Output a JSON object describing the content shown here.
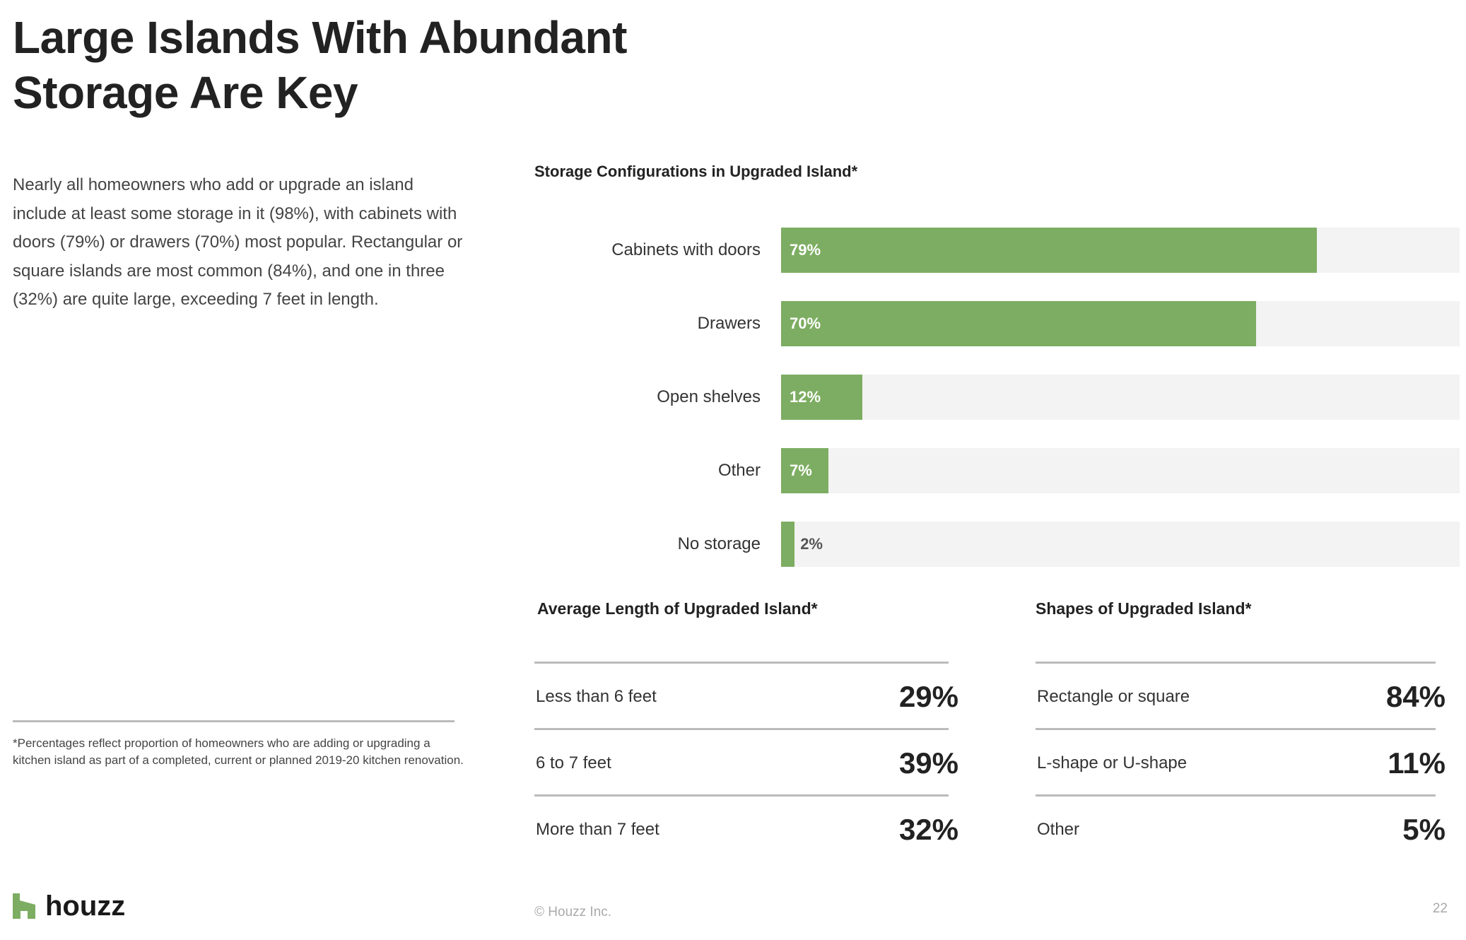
{
  "title": [
    "Large Islands With Abundant",
    "Storage Are Key"
  ],
  "intro": "Nearly all homeowners who add or upgrade an island include at least some storage in it (98%), with cabinets with doors (79%) or drawers (70%) most popular. Rectangular or square islands are most common (84%), and one in three (32%) are quite large, exceeding 7 feet in length.",
  "footnote": "*Percentages reflect proportion of homeowners who are adding or upgrading a kitchen island as part of a completed, current or planned 2019-20 kitchen renovation.",
  "brand": {
    "name": "houzz",
    "color": "#7dad62"
  },
  "colors": {
    "bar": "#7dad62",
    "track": "#f3f3f3"
  },
  "chart_data": [
    {
      "type": "bar",
      "orientation": "horizontal",
      "title": "Storage Configurations in Upgraded Island*",
      "categories": [
        "Cabinets with doors",
        "Drawers",
        "Open shelves",
        "Other",
        "No storage"
      ],
      "values": [
        79,
        70,
        12,
        7,
        2
      ],
      "labels": [
        "79%",
        "70%",
        "12%",
        "7%",
        "2%"
      ],
      "xlim": [
        0,
        100
      ],
      "unit": "%",
      "grid": false
    },
    {
      "type": "table",
      "title": "Average Length of Upgraded Island*",
      "rows": [
        {
          "label": "Less than 6 feet",
          "value": "29%"
        },
        {
          "label": "6 to 7 feet",
          "value": "39%"
        },
        {
          "label": "More than 7 feet",
          "value": "32%"
        }
      ]
    },
    {
      "type": "table",
      "title": "Shapes of Upgraded Island*",
      "rows": [
        {
          "label": "Rectangle or square",
          "value": "84%"
        },
        {
          "label": "L-shape or U-shape",
          "value": "11%"
        },
        {
          "label": "Other",
          "value": "5%"
        }
      ]
    }
  ],
  "footer": {
    "copyright": "© Houzz Inc.",
    "page": "22"
  }
}
